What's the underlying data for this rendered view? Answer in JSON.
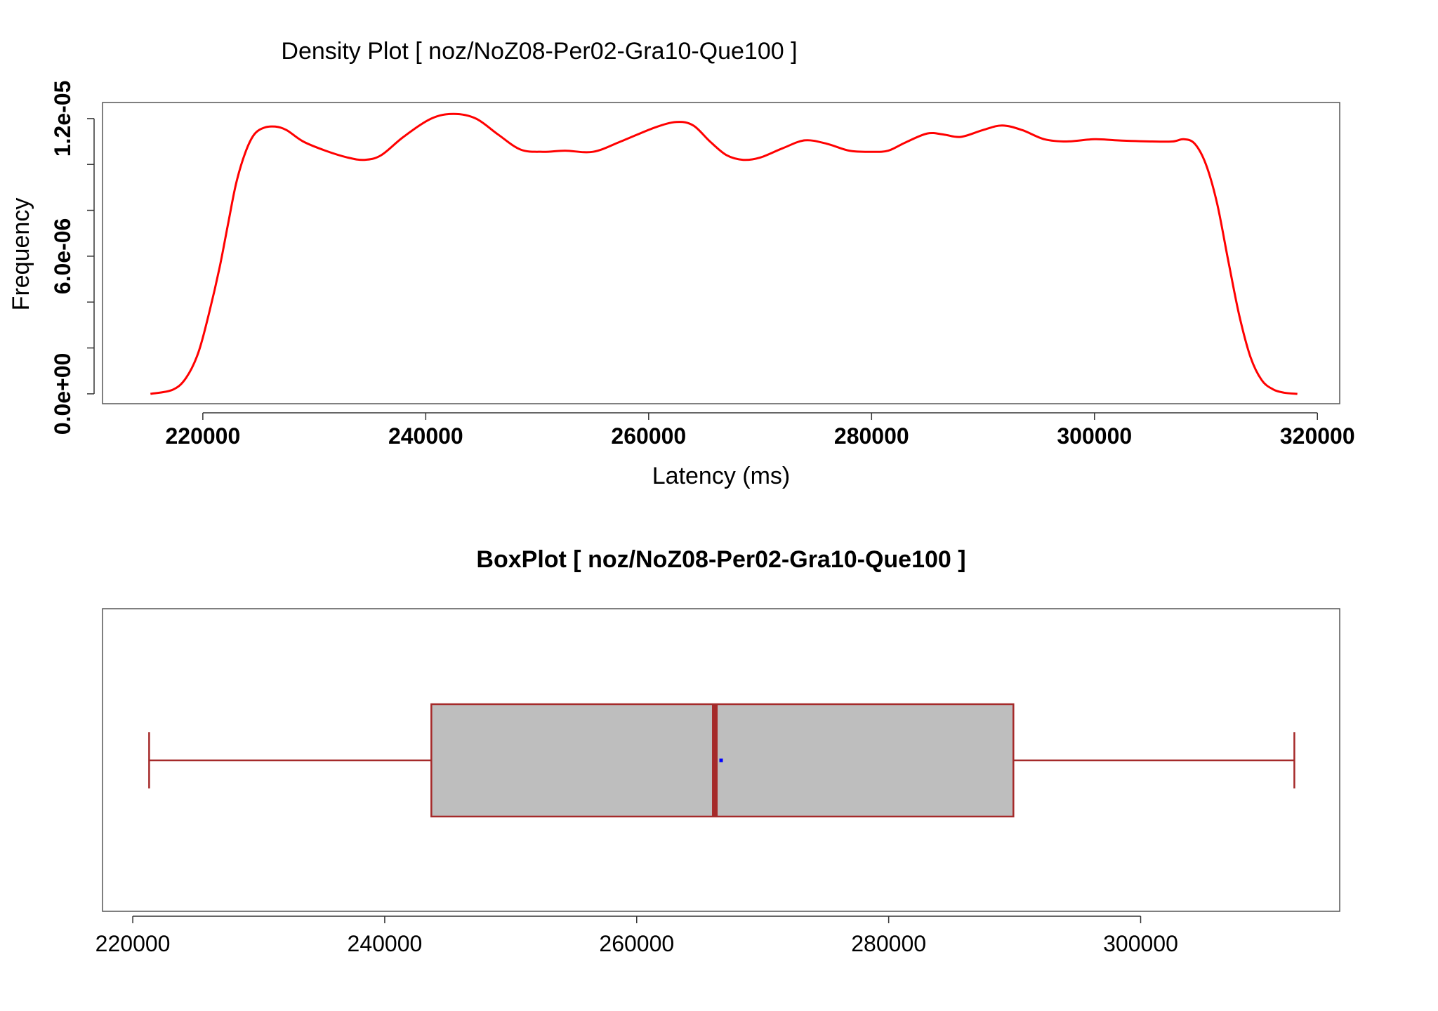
{
  "chart_data": [
    {
      "type": "line",
      "title": "Density Plot [ noz/NoZ08-Per02-Gra10-Que100 ]",
      "xlabel": "Latency (ms)",
      "ylabel": "Frequency",
      "xlim": [
        211000,
        322000
      ],
      "ylim": [
        -4.3e-07,
        1.27e-05
      ],
      "x_ticks": [
        220000,
        240000,
        260000,
        280000,
        300000,
        320000
      ],
      "x_tick_labels": [
        "220000",
        "240000",
        "260000",
        "280000",
        "300000",
        "320000"
      ],
      "y_ticks": [
        0,
        6e-06,
        1.2e-05
      ],
      "y_tick_labels": [
        "0.0e+00",
        "6.0e-06",
        "1.2e-05"
      ],
      "y_minor_ticks": [
        0,
        2e-06,
        4e-06,
        6e-06,
        8e-06,
        1e-05,
        1.2e-05
      ],
      "grid": false,
      "series": [
        {
          "color": "#ff0000",
          "x": [
            215300,
            217300,
            218500,
            219600,
            220600,
            221500,
            222300,
            223000,
            223800,
            224600,
            225500,
            226500,
            227500,
            229000,
            231000,
            233000,
            234500,
            236000,
            238000,
            240500,
            242500,
            244500,
            246500,
            248500,
            250500,
            252500,
            255000,
            257500,
            260500,
            262500,
            264000,
            265500,
            267000,
            268500,
            270000,
            272000,
            274000,
            276000,
            278000,
            280000,
            281500,
            283000,
            285000,
            286500,
            288000,
            290000,
            291700,
            293500,
            295500,
            297500,
            300000,
            302000,
            305000,
            307000,
            308000,
            309000,
            310000,
            311000,
            312000,
            313000,
            314000,
            315000,
            316000,
            317000,
            318200
          ],
          "y": [
            0,
            1.8e-07,
            7e-07,
            1.8e-06,
            3.6e-06,
            5.5e-06,
            7.5e-06,
            9.2e-06,
            1.05e-05,
            1.13e-05,
            1.16e-05,
            1.165e-05,
            1.15e-05,
            1.1e-05,
            1.06e-05,
            1.03e-05,
            1.02e-05,
            1.04e-05,
            1.12e-05,
            1.2e-05,
            1.22e-05,
            1.2e-05,
            1.13e-05,
            1.065e-05,
            1.055e-05,
            1.06e-05,
            1.055e-05,
            1.1e-05,
            1.16e-05,
            1.185e-05,
            1.17e-05,
            1.1e-05,
            1.04e-05,
            1.02e-05,
            1.03e-05,
            1.07e-05,
            1.105e-05,
            1.09e-05,
            1.06e-05,
            1.055e-05,
            1.06e-05,
            1.095e-05,
            1.135e-05,
            1.13e-05,
            1.12e-05,
            1.15e-05,
            1.17e-05,
            1.15e-05,
            1.11e-05,
            1.1e-05,
            1.11e-05,
            1.105e-05,
            1.1e-05,
            1.1e-05,
            1.11e-05,
            1.09e-05,
            1e-05,
            8.3e-06,
            5.8e-06,
            3.4e-06,
            1.6e-06,
            6e-07,
            2e-07,
            5e-08,
            0
          ]
        }
      ]
    },
    {
      "type": "box",
      "title": "BoxPlot [ noz/NoZ08-Per02-Gra10-Que100 ]",
      "xlim": [
        217600,
        315800
      ],
      "x_ticks": [
        220000,
        240000,
        260000,
        280000,
        300000
      ],
      "x_tick_labels": [
        "220000",
        "240000",
        "260000",
        "280000",
        "300000"
      ],
      "whisker_low": 221300,
      "q1": 243700,
      "median": 266200,
      "mean": 266700,
      "q3": 289900,
      "whisker_high": 312200,
      "box_fill": "#bebebe",
      "border_color": "#a52a2a",
      "mean_color": "#0000ff"
    }
  ]
}
